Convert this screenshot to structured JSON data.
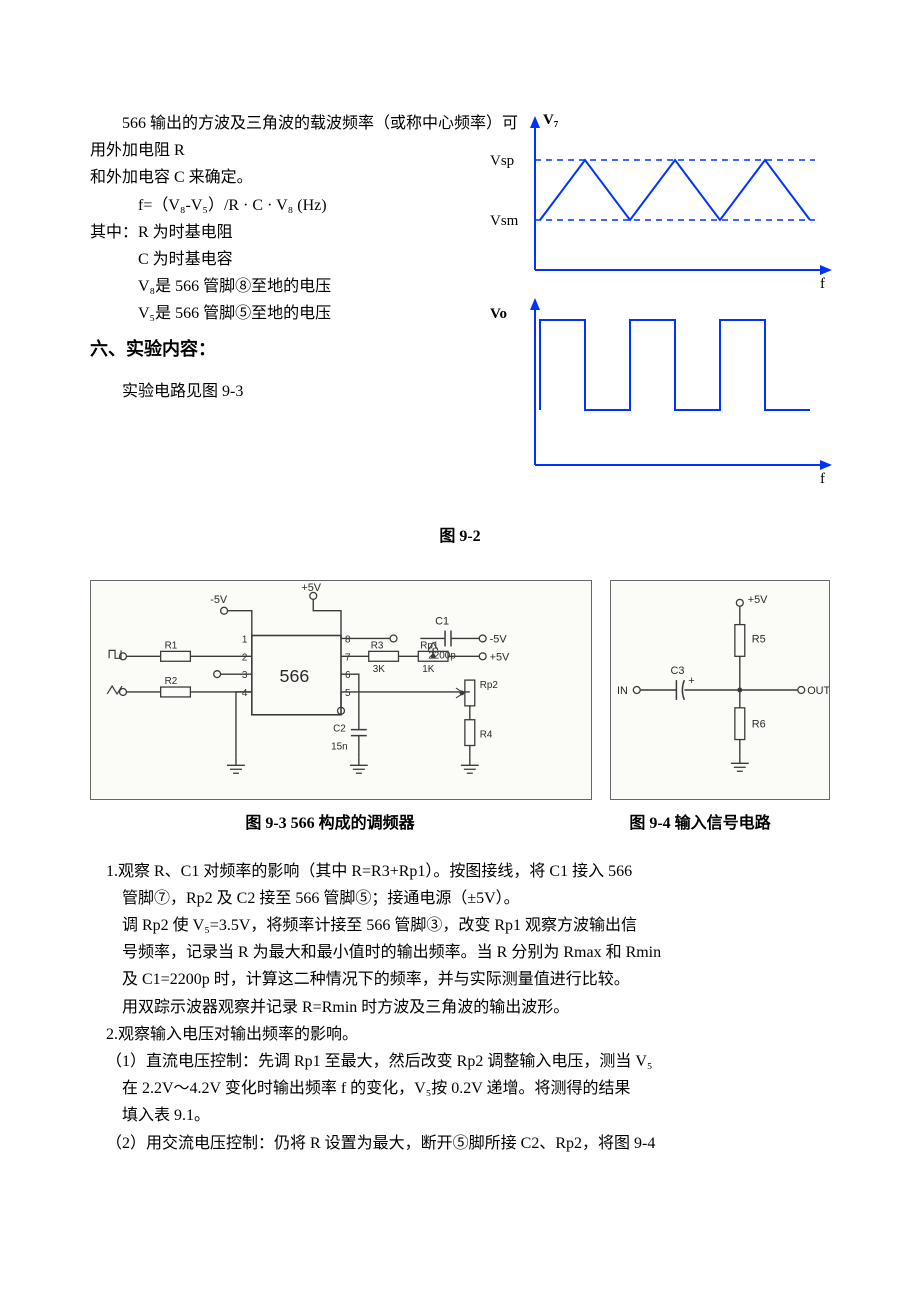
{
  "intro": {
    "line1_a": "566 输出的方波及三角波的载波频率（或称中心频率）可用外加电阻 R",
    "line2": "和外加电容 C 来确定。",
    "formula": "f=（V₈-V₅）/R · C · V₈   (Hz)",
    "where_label": "其中：R 为时基电阻",
    "where2": "C 为时基电容",
    "where3": "V₈是 566 管脚⑧至地的电压",
    "where4": "V₅是 566 管脚⑤至地的电压"
  },
  "section6": {
    "heading": "六、实验内容：",
    "circuit_ref": "实验电路见图 9-3"
  },
  "fig92": {
    "caption": "图 9-2",
    "labels": {
      "v7": "V₇",
      "vsp": "Vsp",
      "vsm": "Vsm",
      "vo": "Vo",
      "f1": "f",
      "f2": "f"
    },
    "axis_color": "#0033ff",
    "wave_color": "#0033ff",
    "dash_color": "#0033ff",
    "triangle": {
      "xstart": 60,
      "xend": 330,
      "ybase": 110,
      "ytop": 50,
      "period": 90
    },
    "square": {
      "xstart": 60,
      "xend": 330,
      "yhigh": 210,
      "ylow": 300,
      "period": 90
    }
  },
  "fig93": {
    "caption": "图 9-3 566 构成的调频器",
    "colors": {
      "stroke": "#3a3a3a",
      "bg": "#fbfbf8",
      "text": "#2a2a2a"
    },
    "labels": {
      "neg5v_tl": "-5V",
      "pos5v_t": "+5V",
      "c1": "C1",
      "c1val": "2200p",
      "neg5v_r": "-5V",
      "r1": "R1",
      "r2": "R2",
      "ic": "566",
      "r3": "R3",
      "r3val": "3K",
      "rp1": "Rp1",
      "rp1val": "1K",
      "pos5v_r": "+5V",
      "rp2": "Rp2",
      "c2": "C2",
      "c2val": "15n",
      "r4": "R4",
      "p1": "1",
      "p2": "2",
      "p3": "3",
      "p4": "4",
      "p5": "5",
      "p6": "6",
      "p7": "7",
      "p8": "8"
    }
  },
  "fig94": {
    "caption": "图 9-4 输入信号电路",
    "labels": {
      "pos5v": "+5V",
      "r5": "R5",
      "c3": "C3",
      "in": "IN",
      "out": "OUT",
      "r6": "R6"
    }
  },
  "body": {
    "item1_l1": "1.观察 R、C1 对频率的影响（其中 R=R3+Rp1）。按图接线，将 C1 接入 566",
    "item1_l2": "管脚⑦，Rp2 及 C2 接至 566 管脚⑤；接通电源（±5V）。",
    "item1_l3": "调 Rp2 使 V₅=3.5V，将频率计接至 566 管脚③，改变 Rp1 观察方波输出信",
    "item1_l4": "号频率，记录当 R 为最大和最小值时的输出频率。当 R 分别为 Rmax 和 Rmin",
    "item1_l5": "及 C1=2200p 时，计算这二种情况下的频率，并与实际测量值进行比较。",
    "item1_l6": "用双踪示波器观察并记录 R=Rmin 时方波及三角波的输出波形。",
    "item2_l1": "2.观察输入电压对输出频率的影响。",
    "item2a_l1": "（1）直流电压控制：先调 Rp1 至最大，然后改变 Rp2 调整输入电压，测当 V₅",
    "item2a_l2": "在 2.2V～4.2V 变化时输出频率 f 的变化，V₅按 0.2V 递增。将测得的结果",
    "item2a_l3": "填入表 9.1。",
    "item2b_l1": "（2）用交流电压控制：仍将 R 设置为最大，断开⑤脚所接 C2、Rp2，将图 9-4"
  }
}
